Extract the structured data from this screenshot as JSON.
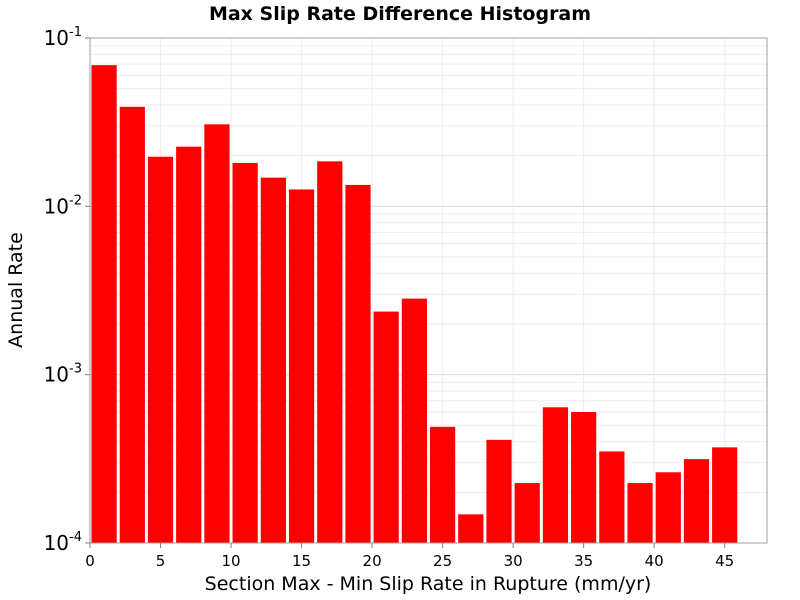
{
  "chart_data": {
    "type": "bar",
    "title": "Max Slip Rate Difference Histogram",
    "xlabel": "Section Max - Min Slip Rate in Rupture (mm/yr)",
    "ylabel": "Annual Rate",
    "y_scale": "log",
    "xlim": [
      0,
      48
    ],
    "ylim": [
      0.0001,
      0.1
    ],
    "xticks": [
      0,
      5,
      10,
      15,
      20,
      25,
      30,
      35,
      40,
      45
    ],
    "yticks": [
      {
        "value": 0.0001,
        "base": "10",
        "exp": "-4"
      },
      {
        "value": 0.001,
        "base": "10",
        "exp": "-3"
      },
      {
        "value": 0.01,
        "base": "10",
        "exp": "-2"
      },
      {
        "value": 0.1,
        "base": "10",
        "exp": "-1"
      }
    ],
    "bin_width": 2,
    "x": [
      1,
      3,
      5,
      7,
      9,
      11,
      13,
      15,
      17,
      19,
      21,
      23,
      25,
      27,
      29,
      31,
      33,
      35,
      37,
      39,
      41,
      43,
      45
    ],
    "values": [
      0.069,
      0.039,
      0.0197,
      0.0226,
      0.0307,
      0.0181,
      0.0148,
      0.0126,
      0.0185,
      0.0134,
      0.00237,
      0.00283,
      0.00049,
      0.000148,
      0.00041,
      0.000227,
      0.00064,
      0.0006,
      0.00035,
      0.000227,
      0.000263,
      0.000315,
      0.00037
    ],
    "bar_color": "#ff0000",
    "grid": true,
    "legend": "none"
  }
}
